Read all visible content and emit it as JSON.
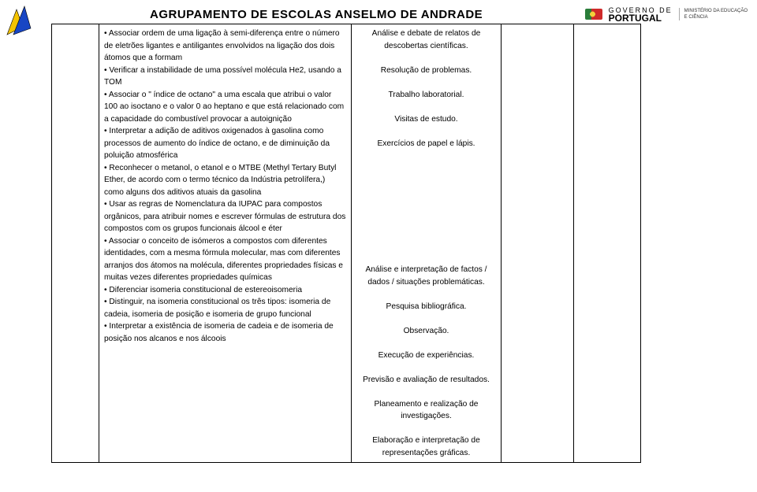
{
  "header": {
    "title": "AGRUPAMENTO DE ESCOLAS ANSELMO DE ANDRADE",
    "gov_line1": "GOVERNO DE",
    "gov_line2": "PORTUGAL",
    "ministry_line1": "MINISTÉRIO DA EDUCAÇÃO",
    "ministry_line2": "E CIÊNCIA"
  },
  "col2_items": [
    "• Associar ordem de uma ligação à semi-diferença entre o número de eletrões ligantes e antiligantes envolvidos na ligação dos dois átomos que a formam",
    "• Verificar a instabilidade de uma possível molécula He2, usando a TOM",
    "• Associar o \" índice de octano\" a uma escala que atribui o valor 100 ao isoctano e o valor 0 ao heptano e que está relacionado com a capacidade do combustível provocar a autoignição",
    "• Interpretar a adição de aditivos oxigenados à gasolina como processos de aumento do índice de octano, e de diminuição da poluição atmosférica",
    "• Reconhecer o metanol, o etanol e o MTBE (Methyl Tertary Butyl Ether, de acordo com o termo técnico da Indústria petrolífera,) como alguns dos aditivos atuais da gasolina",
    "• Usar as regras de Nomenclatura da IUPAC para compostos orgânicos, para atribuir nomes e escrever fórmulas de estrutura dos compostos com os grupos funcionais álcool e éter",
    "• Associar o conceito de isómeros a compostos com diferentes identidades, com a mesma fórmula molecular, mas com diferentes arranjos dos átomos na molécula, diferentes propriedades físicas e muitas vezes diferentes propriedades químicas",
    "• Diferenciar isomeria constitucional de estereoisomeria",
    "• Distinguir, na isomeria constitucional os três tipos: isomeria de cadeia, isomeria de posição e isomeria de grupo funcional",
    "• Interpretar a existência de isomeria de cadeia e de isomeria de posição nos alcanos e nos álcoois"
  ],
  "col3_group1": [
    "Análise e debate de relatos de descobertas científicas.",
    "",
    "Resolução de problemas.",
    "",
    "Trabalho laboratorial.",
    "",
    "Visitas de estudo.",
    "",
    "Exercícios de papel e lápis."
  ],
  "col3_group2": [
    "Análise e interpretação de factos / dados / situações problemáticas.",
    "",
    "Pesquisa bibliográfica.",
    "",
    "Observação.",
    "",
    "Execução de experiências.",
    "",
    "Previsão e avaliação de resultados.",
    "",
    "Planeamento e realização de investigações.",
    "",
    "Elaboração e interpretação de representações gráficas."
  ]
}
